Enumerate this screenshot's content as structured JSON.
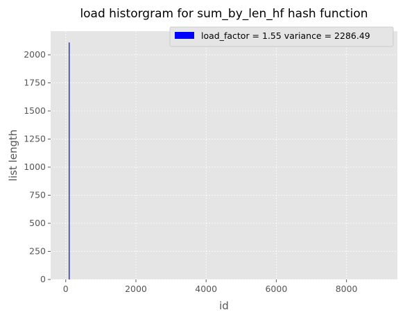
{
  "chart_data": {
    "type": "bar",
    "title": "load historgram for sum_by_len_hf hash function",
    "xlabel": "id",
    "ylabel": "list length",
    "xlim": [
      -430,
      9450
    ],
    "ylim": [
      0,
      2210
    ],
    "xticks": [
      0,
      2000,
      4000,
      6000,
      8000
    ],
    "yticks": [
      0,
      250,
      500,
      750,
      1000,
      1250,
      1500,
      1750,
      2000
    ],
    "grid": true,
    "legend_position": "top-right",
    "series": [
      {
        "name": "load_factor = 1.55 variance = 2286.49",
        "color": "#0000ff",
        "bars": [
          {
            "x": 100,
            "value": 2110
          }
        ]
      }
    ]
  }
}
